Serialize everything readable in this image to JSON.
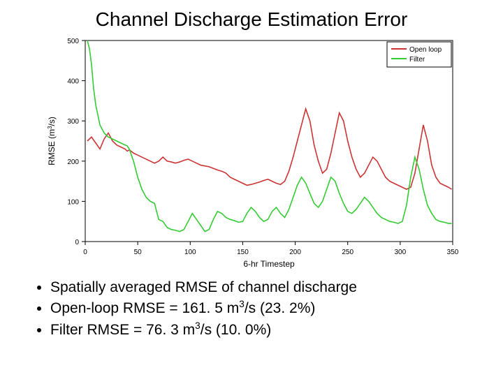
{
  "title": "Channel Discharge Estimation Error",
  "chart": {
    "type": "line",
    "background_color": "#ffffff",
    "plot_border_color": "#000000",
    "xlim": [
      0,
      350
    ],
    "ylim": [
      0,
      500
    ],
    "xticks": [
      0,
      50,
      100,
      150,
      200,
      250,
      300,
      350
    ],
    "yticks": [
      0,
      100,
      200,
      300,
      400,
      500
    ],
    "xlabel": "6-hr Timestep",
    "ylabel": "RMSE (m³/s)",
    "axis_label_fontsize": 12,
    "tick_fontsize": 10,
    "legend": {
      "position": "top-right",
      "border_color": "#000000",
      "items": [
        {
          "label": "Open loop",
          "color": "#cc3333"
        },
        {
          "label": "Filter",
          "color": "#33cc33"
        }
      ]
    },
    "series": [
      {
        "name": "Open loop",
        "color": "#cc3333",
        "line_width": 1.6,
        "x": [
          2,
          6,
          10,
          14,
          18,
          22,
          26,
          30,
          34,
          38,
          40,
          42,
          46,
          50,
          54,
          58,
          62,
          66,
          70,
          74,
          78,
          82,
          86,
          90,
          94,
          98,
          102,
          106,
          110,
          114,
          118,
          122,
          126,
          130,
          134,
          138,
          142,
          146,
          150,
          154,
          158,
          162,
          166,
          170,
          174,
          178,
          182,
          186,
          190,
          194,
          198,
          202,
          206,
          210,
          214,
          218,
          222,
          226,
          230,
          234,
          238,
          242,
          246,
          250,
          254,
          258,
          262,
          266,
          270,
          274,
          278,
          282,
          286,
          290,
          294,
          298,
          302,
          306,
          310,
          314,
          318,
          322,
          326,
          330,
          334,
          338,
          342,
          346,
          349
        ],
        "y": [
          250,
          260,
          245,
          230,
          255,
          270,
          250,
          240,
          235,
          230,
          225,
          228,
          220,
          215,
          210,
          205,
          200,
          195,
          200,
          210,
          200,
          198,
          195,
          198,
          202,
          205,
          200,
          195,
          190,
          188,
          186,
          182,
          178,
          175,
          170,
          160,
          155,
          150,
          145,
          140,
          142,
          145,
          148,
          152,
          155,
          150,
          145,
          142,
          150,
          175,
          210,
          250,
          290,
          330,
          300,
          240,
          200,
          170,
          180,
          220,
          270,
          320,
          300,
          250,
          210,
          180,
          160,
          170,
          190,
          210,
          200,
          180,
          160,
          150,
          145,
          140,
          135,
          130,
          135,
          170,
          230,
          290,
          250,
          190,
          160,
          145,
          140,
          135,
          130
        ]
      },
      {
        "name": "Filter",
        "color": "#33cc33",
        "line_width": 1.6,
        "x": [
          2,
          4,
          6,
          8,
          10,
          14,
          18,
          22,
          26,
          30,
          34,
          38,
          40,
          42,
          46,
          50,
          54,
          58,
          62,
          66,
          70,
          74,
          78,
          82,
          86,
          90,
          94,
          98,
          102,
          106,
          110,
          114,
          118,
          122,
          126,
          130,
          134,
          138,
          142,
          146,
          150,
          154,
          158,
          162,
          166,
          170,
          174,
          178,
          182,
          186,
          190,
          194,
          198,
          202,
          206,
          210,
          214,
          218,
          222,
          226,
          230,
          234,
          238,
          242,
          246,
          250,
          254,
          258,
          262,
          266,
          270,
          274,
          278,
          282,
          286,
          290,
          294,
          298,
          302,
          306,
          310,
          314,
          318,
          322,
          326,
          330,
          334,
          338,
          342,
          346,
          349
        ],
        "y": [
          500,
          480,
          440,
          380,
          340,
          290,
          270,
          260,
          255,
          250,
          245,
          240,
          238,
          230,
          200,
          160,
          130,
          110,
          100,
          95,
          55,
          50,
          35,
          30,
          28,
          25,
          30,
          50,
          70,
          55,
          40,
          25,
          30,
          55,
          75,
          70,
          60,
          55,
          52,
          48,
          50,
          70,
          85,
          75,
          60,
          50,
          55,
          75,
          85,
          70,
          60,
          80,
          110,
          140,
          160,
          145,
          120,
          95,
          85,
          100,
          130,
          160,
          150,
          120,
          95,
          75,
          70,
          80,
          95,
          110,
          100,
          85,
          70,
          60,
          55,
          50,
          48,
          45,
          50,
          90,
          160,
          210,
          180,
          130,
          90,
          70,
          55,
          50,
          48,
          45,
          45
        ]
      }
    ]
  },
  "bullets": [
    {
      "prefix": "Spatially averaged RMSE of channel discharge",
      "value": "",
      "unit": "",
      "pct": ""
    },
    {
      "prefix": "Open-loop RMSE = ",
      "value": "161. 5",
      "unit": " m³/s ",
      "pct": "(23. 2%)"
    },
    {
      "prefix": "Filter RMSE = ",
      "value": "76. 3",
      "unit": " m³/s ",
      "pct": "(10. 0%)"
    }
  ]
}
